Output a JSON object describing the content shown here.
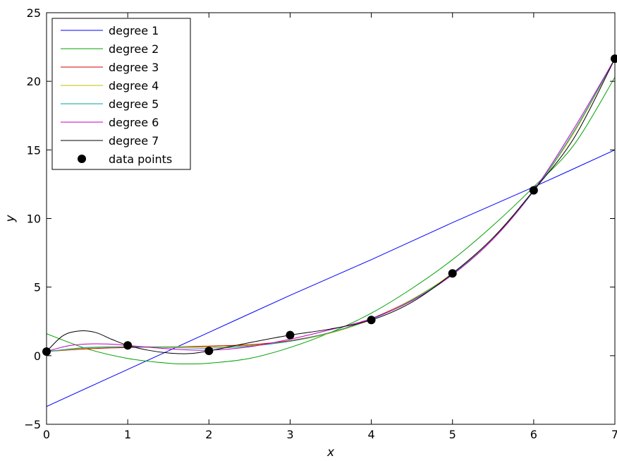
{
  "chart_data": {
    "type": "line",
    "title": "",
    "xlabel": "x",
    "ylabel": "y",
    "xlim": [
      0,
      7
    ],
    "ylim": [
      -5,
      25
    ],
    "xticks": [
      "0",
      "1",
      "2",
      "3",
      "4",
      "5",
      "6",
      "7"
    ],
    "yticks": [
      "−5",
      "0",
      "5",
      "10",
      "15",
      "20",
      "25"
    ],
    "grid": false,
    "legend_position": "top-left",
    "data_points": {
      "name": "data points",
      "color": "#000000",
      "x": [
        0,
        1,
        2,
        3,
        4,
        5,
        6,
        7
      ],
      "y": [
        0.3,
        0.75,
        0.35,
        1.5,
        2.6,
        6.0,
        12.05,
        21.65
      ]
    },
    "series": [
      {
        "name": "degree 1",
        "color": "#0000ff",
        "x": [
          0,
          1,
          2,
          3,
          4,
          5,
          6,
          7
        ],
        "y": [
          -3.7,
          -1.0,
          1.7,
          4.4,
          7.0,
          9.7,
          12.3,
          15.0
        ]
      },
      {
        "name": "degree 2",
        "color": "#00a000",
        "x": [
          0,
          0.5,
          1,
          1.5,
          1.75,
          2,
          2.5,
          3,
          3.5,
          4,
          4.5,
          5,
          5.5,
          6,
          6.5,
          7
        ],
        "y": [
          1.6,
          0.5,
          -0.2,
          -0.55,
          -0.6,
          -0.55,
          -0.2,
          0.6,
          1.7,
          3.1,
          4.9,
          7.0,
          9.5,
          12.3,
          15.4,
          20.3
        ]
      },
      {
        "name": "degree 3",
        "color": "#d00000",
        "x": [
          0,
          0.5,
          1,
          1.5,
          2,
          2.5,
          3,
          3.5,
          4,
          4.5,
          5,
          5.5,
          6,
          6.5,
          7
        ],
        "y": [
          0.3,
          0.5,
          0.6,
          0.65,
          0.7,
          0.8,
          1.1,
          1.7,
          2.7,
          4.1,
          6.0,
          8.6,
          12.0,
          16.3,
          21.65
        ]
      },
      {
        "name": "degree 4",
        "color": "#c0c000",
        "x": [
          0,
          0.5,
          1,
          1.5,
          2,
          2.5,
          3,
          3.5,
          4,
          4.5,
          5,
          5.5,
          6,
          6.5,
          7
        ],
        "y": [
          0.3,
          0.55,
          0.65,
          0.65,
          0.65,
          0.75,
          1.05,
          1.65,
          2.65,
          4.1,
          6.0,
          8.6,
          12.0,
          16.3,
          21.65
        ]
      },
      {
        "name": "degree 5",
        "color": "#00a0a0",
        "x": [
          0,
          0.5,
          1,
          1.5,
          2,
          2.5,
          3,
          3.5,
          4,
          4.5,
          5,
          5.5,
          6,
          6.5,
          7
        ],
        "y": [
          0.3,
          0.6,
          0.65,
          0.6,
          0.55,
          0.7,
          1.05,
          1.7,
          2.65,
          4.05,
          5.95,
          8.5,
          12.0,
          16.4,
          21.65
        ]
      },
      {
        "name": "degree 6",
        "color": "#c000c0",
        "x": [
          0,
          0.25,
          0.5,
          0.75,
          1,
          1.5,
          2,
          2.5,
          3,
          3.5,
          4,
          4.5,
          5,
          5.5,
          6,
          6.5,
          7
        ],
        "y": [
          0.3,
          0.7,
          0.85,
          0.85,
          0.75,
          0.5,
          0.4,
          0.65,
          1.2,
          1.9,
          2.7,
          4.0,
          5.9,
          8.5,
          12.05,
          16.6,
          21.65
        ]
      },
      {
        "name": "degree 7",
        "color": "#000000",
        "x": [
          0,
          0.2,
          0.4,
          0.6,
          0.8,
          1,
          1.25,
          1.5,
          1.75,
          2,
          2.5,
          3,
          3.5,
          4,
          4.5,
          5,
          5.5,
          6,
          6.5,
          7
        ],
        "y": [
          0.3,
          1.45,
          1.8,
          1.7,
          1.2,
          0.75,
          0.4,
          0.2,
          0.15,
          0.35,
          0.95,
          1.5,
          1.95,
          2.6,
          3.9,
          6.0,
          8.6,
          12.05,
          15.9,
          21.65
        ]
      }
    ]
  }
}
